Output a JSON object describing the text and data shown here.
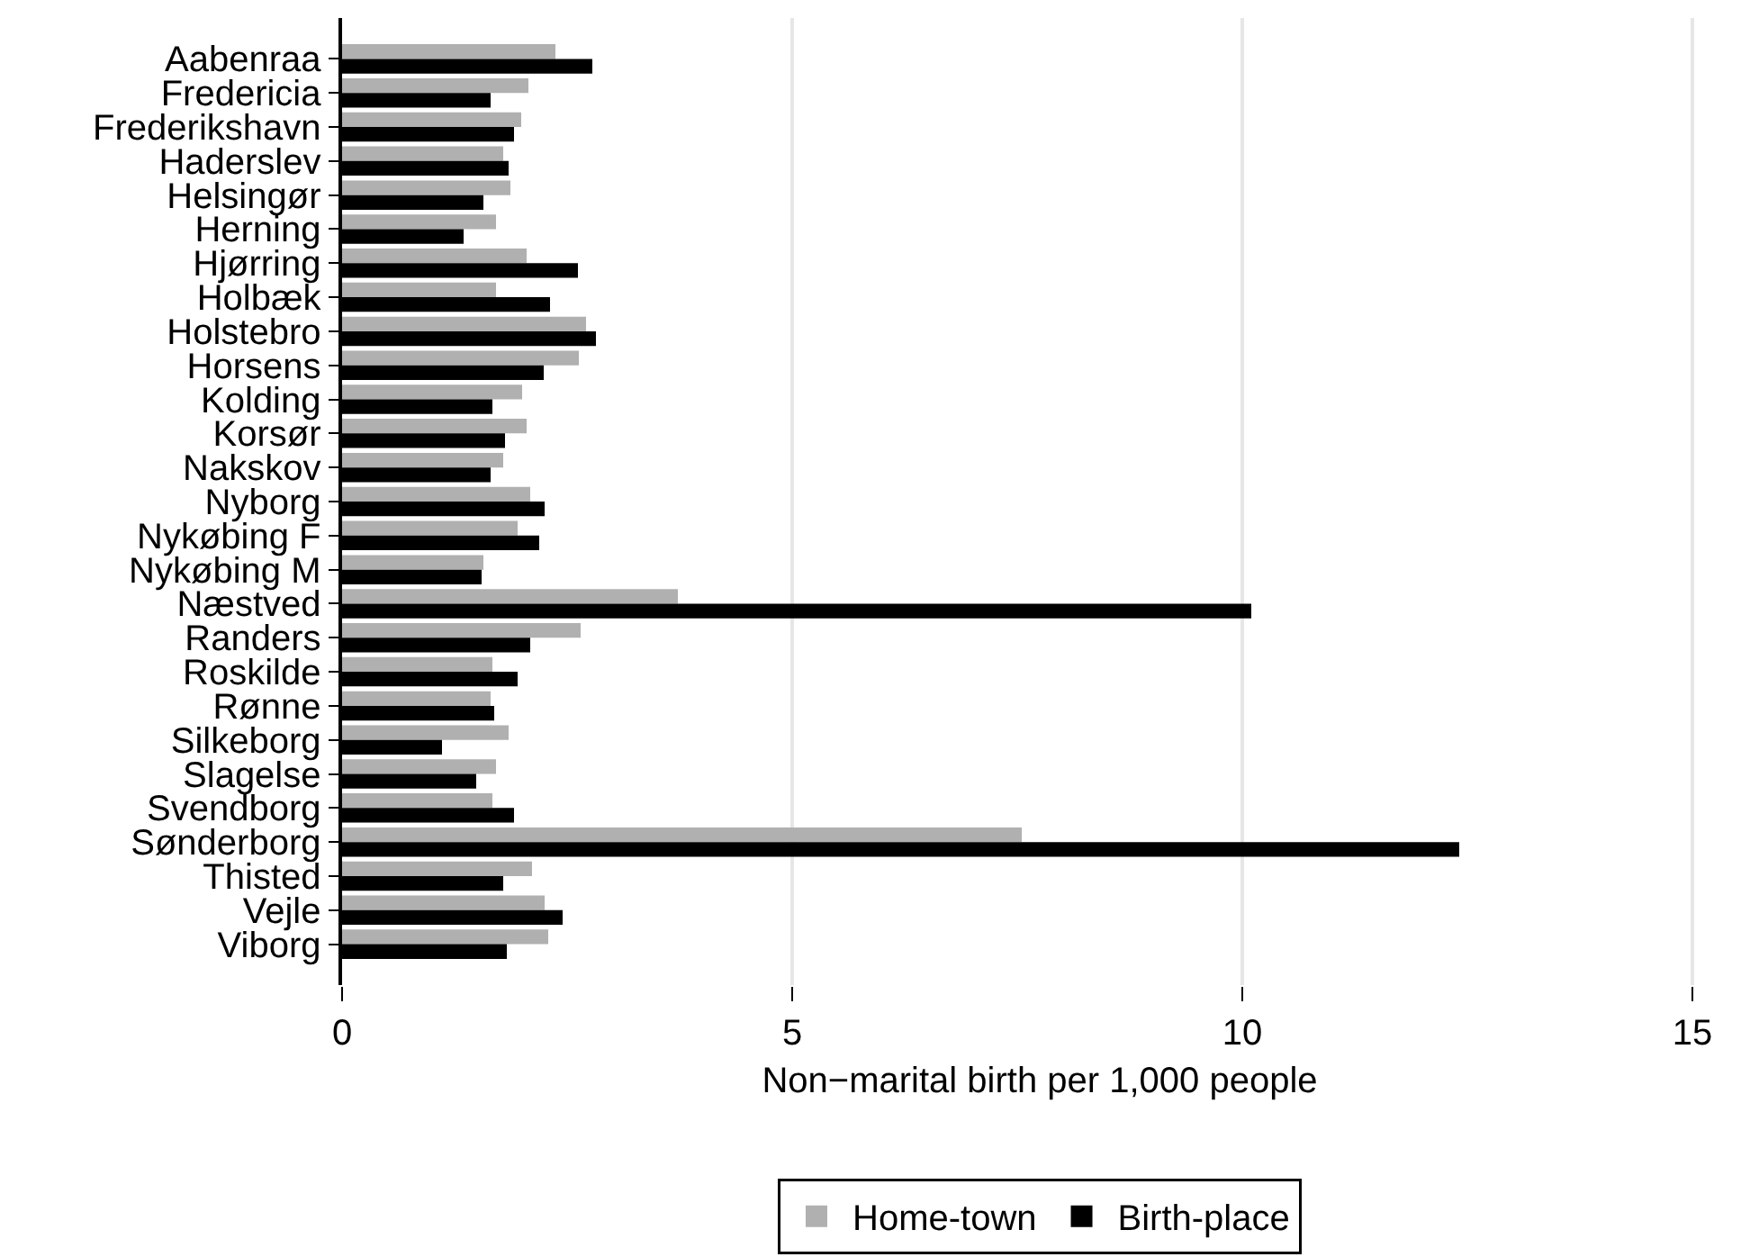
{
  "chart_data": {
    "type": "bar",
    "orientation": "horizontal",
    "categories": [
      "Aabenraa",
      "Fredericia",
      "Frederikshavn",
      "Haderslev",
      "Helsingør",
      "Herning",
      "Hjørring",
      "Holbæk",
      "Holstebro",
      "Horsens",
      "Kolding",
      "Korsør",
      "Nakskov",
      "Nyborg",
      "Nykøbing F",
      "Nykøbing M",
      "Næstved",
      "Randers",
      "Roskilde",
      "Rønne",
      "Silkeborg",
      "Slagelse",
      "Svendborg",
      "Sønderborg",
      "Thisted",
      "Vejle",
      "Viborg"
    ],
    "series": [
      {
        "name": "Home-town",
        "color": "#b0b0b0",
        "values": [
          2.37,
          2.07,
          1.99,
          1.79,
          1.87,
          1.71,
          2.05,
          1.71,
          2.71,
          2.63,
          2.0,
          2.05,
          1.79,
          2.09,
          1.95,
          1.57,
          3.73,
          2.65,
          1.67,
          1.65,
          1.85,
          1.71,
          1.67,
          7.55,
          2.11,
          2.25,
          2.29
        ]
      },
      {
        "name": "Birth-place",
        "color": "#000000",
        "values": [
          2.78,
          1.65,
          1.91,
          1.85,
          1.57,
          1.35,
          2.62,
          2.31,
          2.82,
          2.24,
          1.67,
          1.81,
          1.65,
          2.25,
          2.19,
          1.55,
          10.1,
          2.09,
          1.95,
          1.69,
          1.11,
          1.49,
          1.91,
          12.41,
          1.79,
          2.45,
          1.83
        ]
      }
    ],
    "xlabel": "Non−marital birth per 1,000 people",
    "xlim": [
      0,
      15.5
    ],
    "xticks": [
      0,
      5,
      10,
      15
    ],
    "grid": "x",
    "legend": "bottom"
  }
}
